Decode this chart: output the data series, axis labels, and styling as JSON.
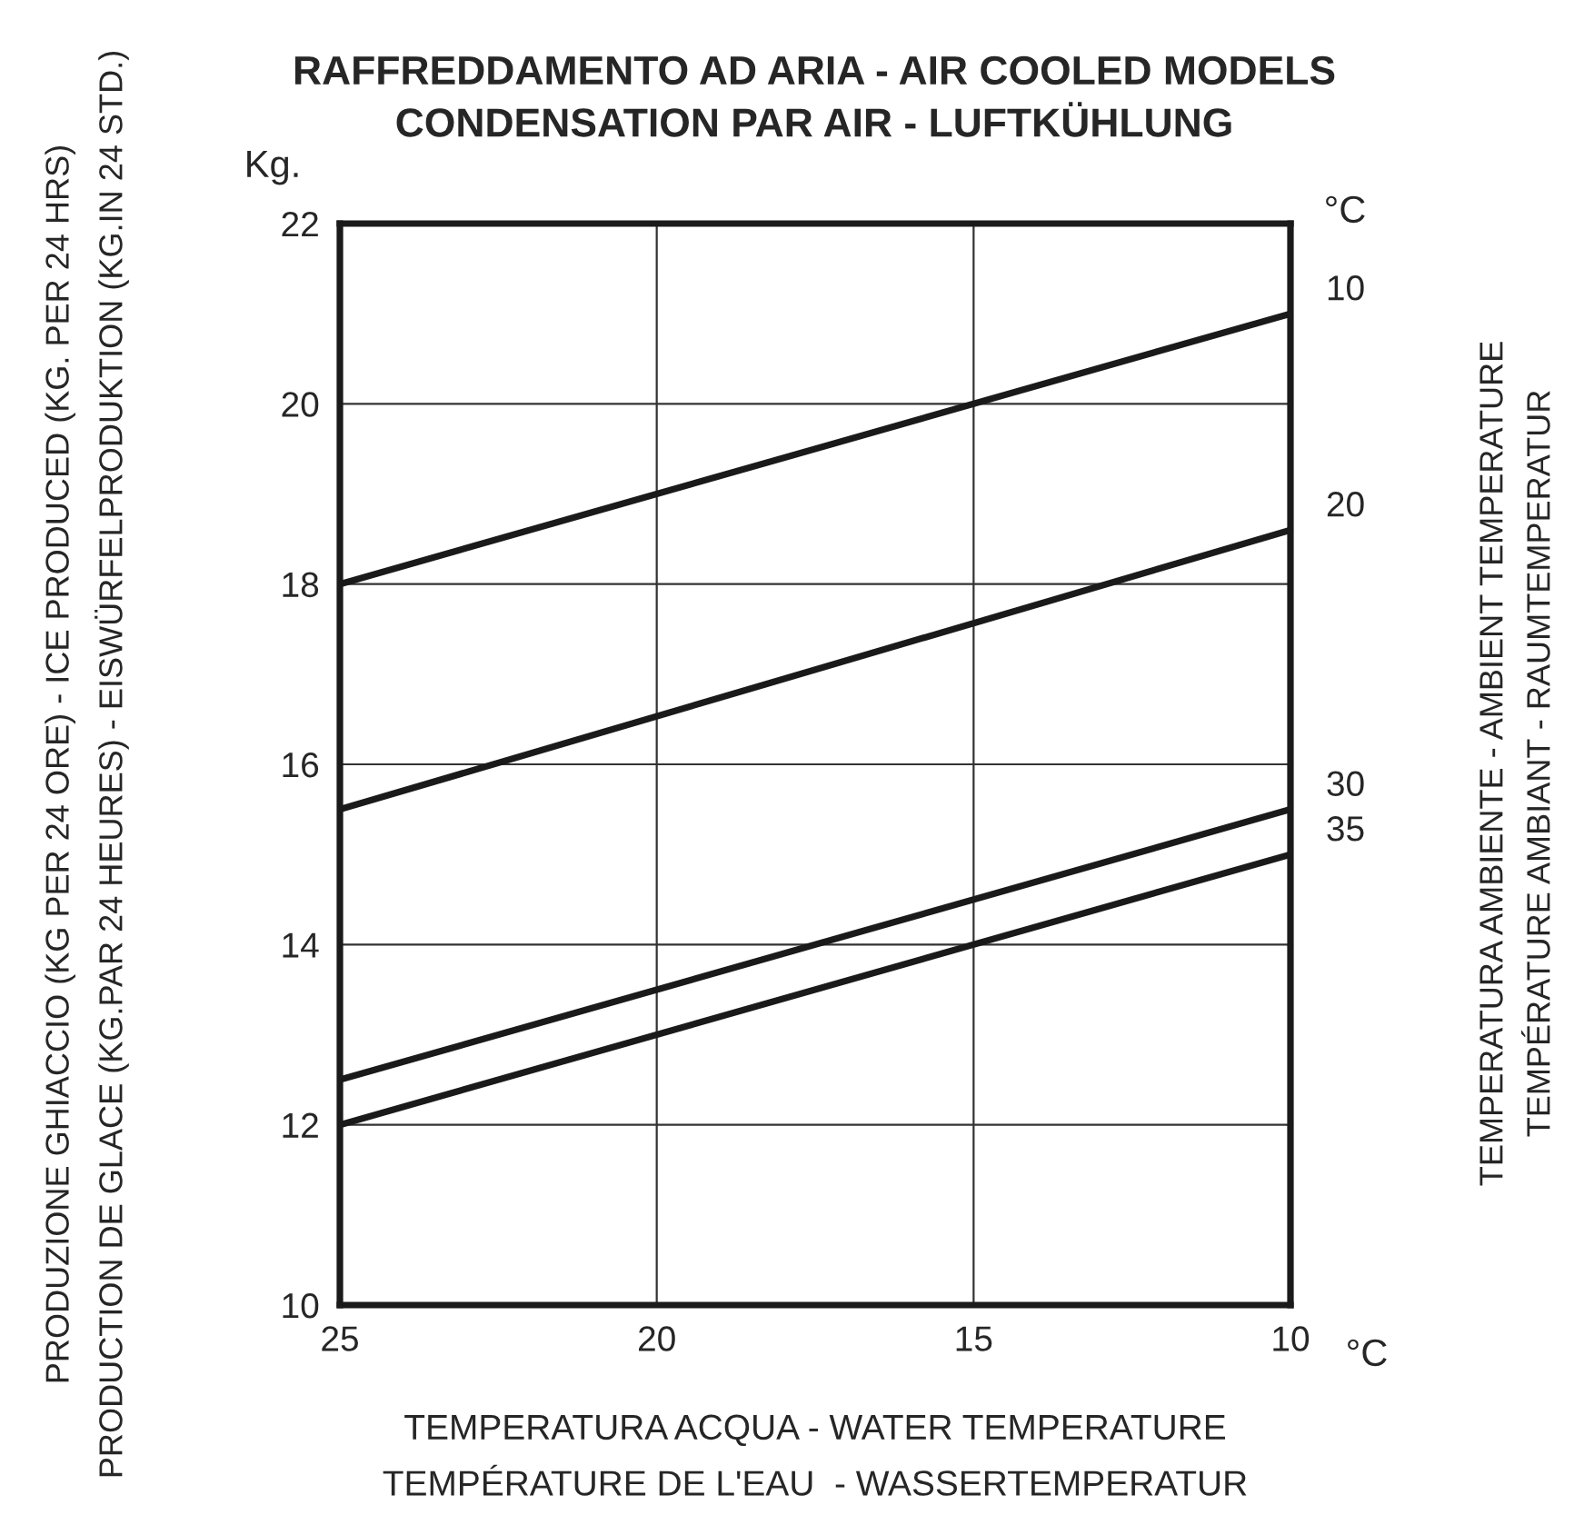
{
  "chart_data": {
    "type": "line",
    "title": "RAFFREDDAMENTO AD ARIA - AIR COOLED MODELS\nCONDENSATION PAR AIR - LUFTKÜHLUNG",
    "xlabel": "TEMPERATURA ACQUA - WATER TEMPERATURE\nTEMPÉRATURE DE L'EAU  - WASSERTEMPERATUR",
    "ylabel": "PRODUZIONE GHIACCIO (KG PER 24 ORE) - ICE PRODUCED (KG. PER 24 HRS)\nPRODUCTION DE GLACE (KG.PAR 24 HEURES) - EISWÜRFELPRODUKTION (KG.IN 24 STD.)",
    "legend_title": "°C",
    "annotations": [
      "Kg.",
      "°C",
      "TEMPERATURA AMBIENTE - AMBIENT TEMPERATURE\nTEMPÉRATURE AMBIANT - RAUMTEMPERATUR"
    ],
    "x": [
      25,
      10
    ],
    "series": [
      {
        "name": "10",
        "color": "#1a1a1a",
        "values": [
          18,
          21
        ]
      },
      {
        "name": "20",
        "color": "#1a1a1a",
        "values": [
          15.5,
          18.6
        ]
      },
      {
        "name": "30",
        "color": "#1a1a1a",
        "values": [
          12.5,
          15.5
        ]
      },
      {
        "name": "35",
        "color": "#1a1a1a",
        "values": [
          12,
          15
        ]
      }
    ],
    "xlim": [
      25,
      10
    ],
    "xticks": [
      25,
      20,
      15,
      10
    ],
    "ylim": [
      10,
      22
    ],
    "yticks": [
      10,
      12,
      14,
      16,
      18,
      20,
      22
    ],
    "grid": true,
    "line_style": "solid"
  }
}
